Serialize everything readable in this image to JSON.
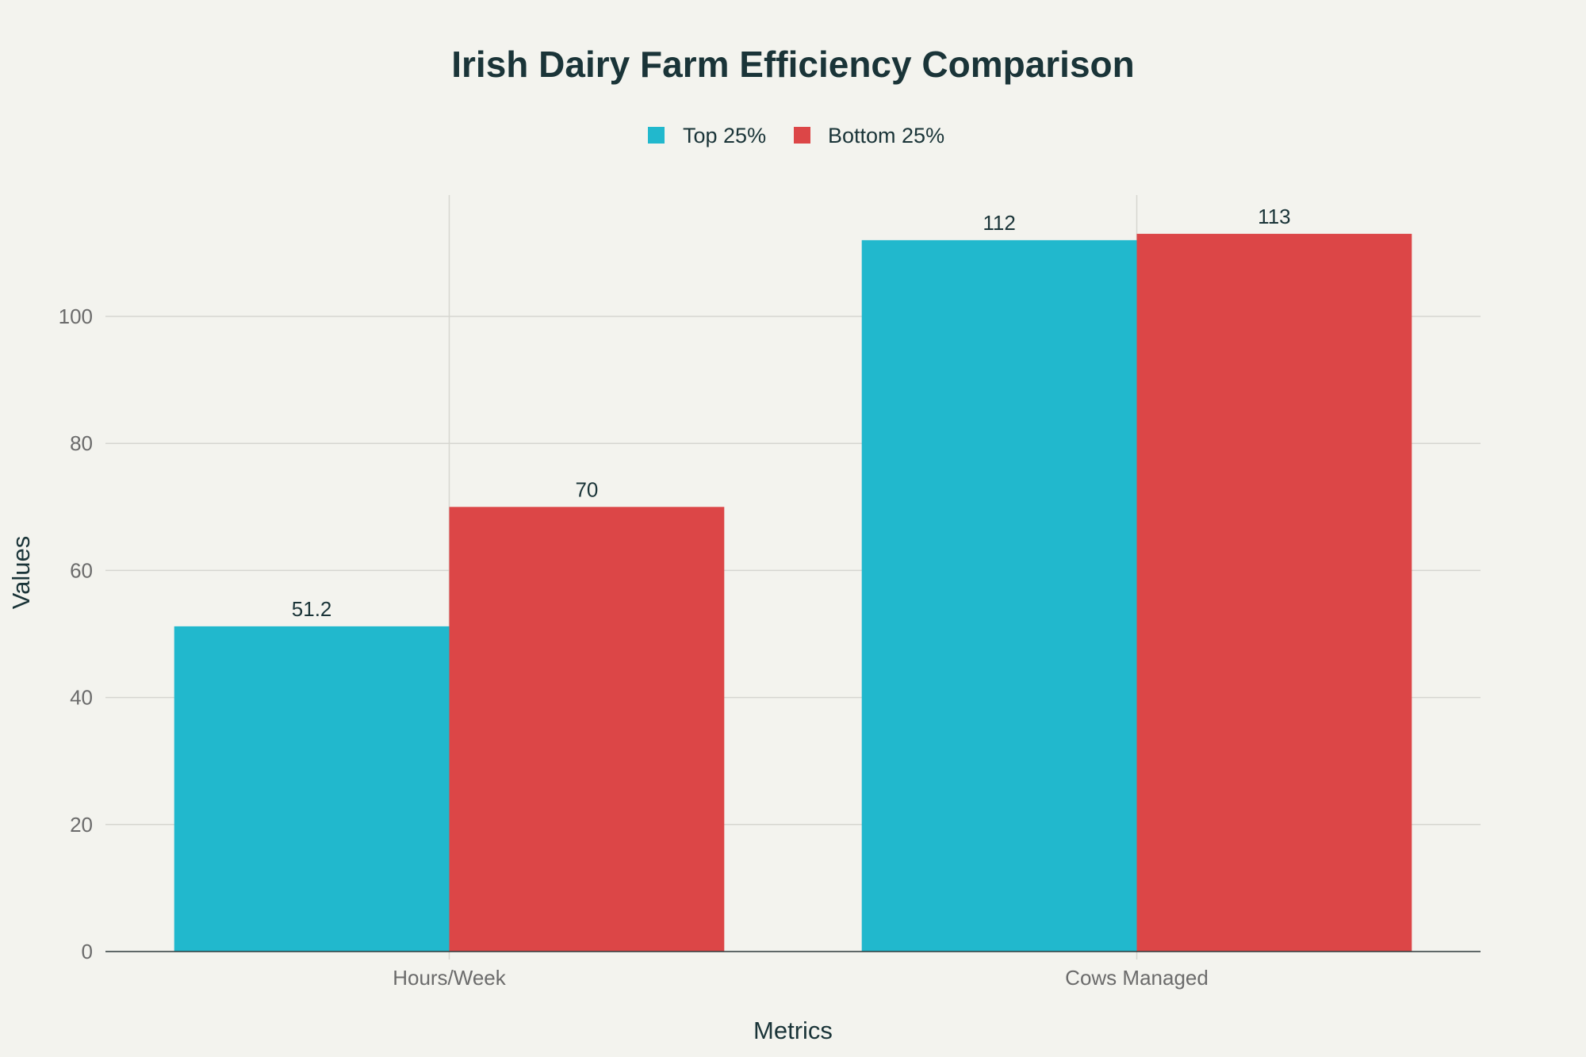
{
  "chart_data": {
    "type": "bar",
    "title": "Irish Dairy Farm Efficiency Comparison",
    "xlabel": "Metrics",
    "ylabel": "Values",
    "categories": [
      "Hours/Week",
      "Cows Managed"
    ],
    "series": [
      {
        "name": "Top 25%",
        "color": "#21b8cd",
        "values": [
          51.2,
          112
        ],
        "labels": [
          "51.2",
          "112"
        ]
      },
      {
        "name": "Bottom 25%",
        "color": "#dc4647",
        "values": [
          70,
          113
        ],
        "labels": [
          "70",
          "113"
        ]
      }
    ],
    "ylim": [
      0,
      118.9
    ],
    "yticks": [
      0,
      20,
      40,
      60,
      80,
      100
    ],
    "ytick_labels": [
      "0",
      "20",
      "40",
      "60",
      "80",
      "100"
    ],
    "legend_position": "top-center"
  }
}
